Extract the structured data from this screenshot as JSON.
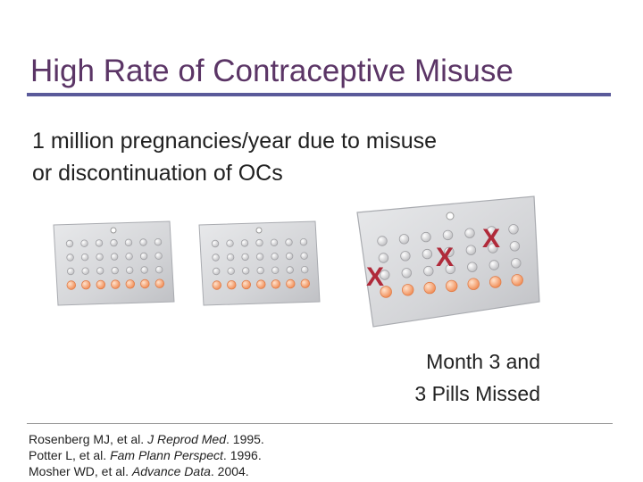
{
  "slide": {
    "title": "High Rate of Contraceptive Misuse",
    "subtitle_line1": "1 million pregnancies/year due to misuse",
    "subtitle_line2": "or discontinuation of OCs",
    "caption_line1": "Month 3 and",
    "caption_line2": "3 Pills Missed"
  },
  "references": [
    {
      "authors": "Rosenberg MJ, et al.",
      "journal": "J Reprod Med",
      "year": "1995."
    },
    {
      "authors": "Potter L, et al.",
      "journal": "Fam Plann Perspect",
      "year": "1996."
    },
    {
      "authors": "Mosher WD, et al.",
      "journal": "Advance Data",
      "year": "2004."
    }
  ],
  "illustration": {
    "packs": [
      "month-1-pack",
      "month-2-pack",
      "month-3-pack"
    ],
    "missed_mark": "X",
    "missed_count": 3,
    "colors": {
      "pack": "#d2d3d6",
      "pill": "#efefef",
      "placebo": "#f5a77a",
      "mark": "#b02a3a"
    }
  }
}
